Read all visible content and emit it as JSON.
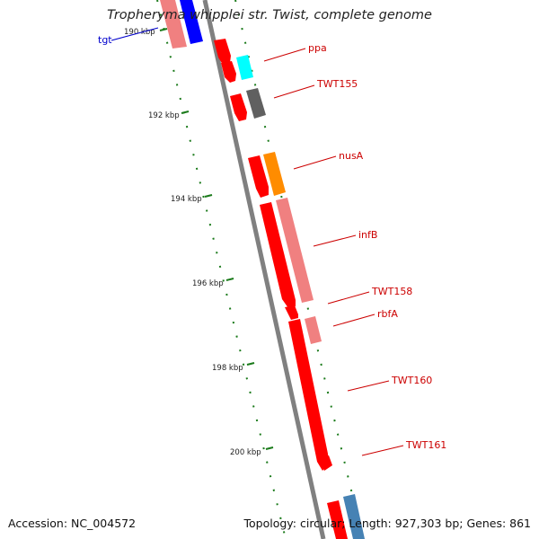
{
  "title": "Tropheryma whipplei str. Twist, complete genome",
  "footer": {
    "accession": "Accession: NC_004572",
    "summary": "Topology: circular; Length: 927,303 bp; Genes: 861"
  },
  "ticks": [
    "190 kbp",
    "192 kbp",
    "194 kbp",
    "196 kbp",
    "198 kbp",
    "200 kbp"
  ],
  "genes": [
    {
      "label": "tgt",
      "color": "#0000cc"
    },
    {
      "label": "ppa",
      "color": "#cc0000"
    },
    {
      "label": "TWT155",
      "color": "#cc0000"
    },
    {
      "label": "nusA",
      "color": "#cc0000"
    },
    {
      "label": "infB",
      "color": "#cc0000"
    },
    {
      "label": "TWT158",
      "color": "#cc0000"
    },
    {
      "label": "rbfA",
      "color": "#cc0000"
    },
    {
      "label": "TWT160",
      "color": "#cc0000"
    },
    {
      "label": "TWT161",
      "color": "#cc0000"
    }
  ],
  "colors": {
    "backbone": "#808080",
    "tick": "#1a7a1a",
    "feature_red": "#ff0000",
    "feature_pink": "#f08080",
    "feature_blue": "#0000ff",
    "feature_cyan": "#00ffff",
    "feature_gray": "#606060",
    "feature_orange": "#ff8c00",
    "feature_steel": "#4682b4"
  }
}
